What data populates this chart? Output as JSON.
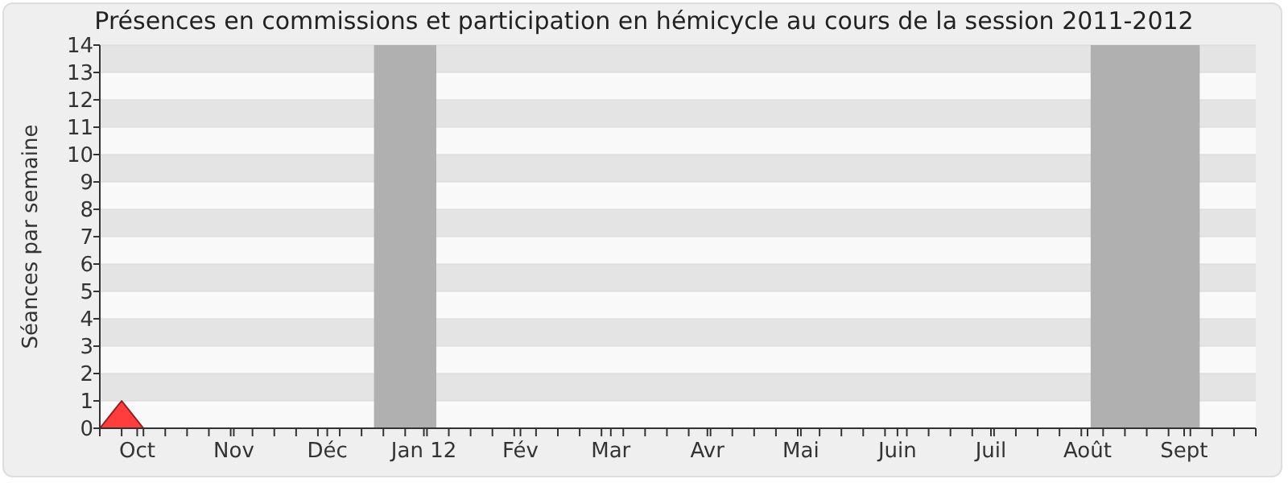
{
  "chart_data": {
    "type": "area",
    "title": "Présences en commissions et participation en hémicycle au cours de la session 2011-2012",
    "ylabel": "Séances par semaine",
    "x": [
      "2011-09-19",
      "2011-09-26",
      "2011-10-03",
      "2011-10-10",
      "2011-10-17",
      "2011-10-24",
      "2011-10-31",
      "2011-11-07",
      "2011-11-14",
      "2011-11-21",
      "2011-11-28",
      "2011-12-05",
      "2011-12-12",
      "2011-12-19",
      "2011-12-26",
      "2012-01-02",
      "2012-01-09",
      "2012-01-16",
      "2012-01-23",
      "2012-01-30",
      "2012-02-06",
      "2012-02-13",
      "2012-02-20",
      "2012-02-27",
      "2012-03-05",
      "2012-03-12",
      "2012-03-19",
      "2012-03-26",
      "2012-04-02",
      "2012-04-09",
      "2012-04-16",
      "2012-04-23",
      "2012-04-30",
      "2012-05-07",
      "2012-05-14",
      "2012-05-21",
      "2012-05-28",
      "2012-06-04",
      "2012-06-11",
      "2012-06-18",
      "2012-06-25",
      "2012-07-02",
      "2012-07-09",
      "2012-07-16",
      "2012-07-23",
      "2012-07-30",
      "2012-08-06",
      "2012-08-13",
      "2012-08-20",
      "2012-08-27",
      "2012-09-03",
      "2012-09-10",
      "2012-09-17",
      "2012-09-24"
    ],
    "series": [
      {
        "color": "#ff3333",
        "values": [
          0,
          1,
          0,
          0,
          0,
          0,
          0,
          0,
          0,
          0,
          0,
          0,
          0,
          0,
          0,
          0,
          0,
          0,
          0,
          0,
          0,
          0,
          0,
          0,
          0,
          0,
          0,
          0,
          0,
          0,
          0,
          0,
          0,
          0,
          0,
          0,
          0,
          0,
          0,
          0,
          0,
          0,
          0,
          0,
          0,
          0,
          0,
          0,
          0,
          0,
          0,
          0,
          0,
          0
        ]
      }
    ],
    "xlim": [
      "2011-09-19",
      "2012-09-24"
    ],
    "xticks": [
      {
        "value": "2011-10-01",
        "label": "Oct"
      },
      {
        "value": "2011-11-01",
        "label": "Nov"
      },
      {
        "value": "2011-12-01",
        "label": "Déc"
      },
      {
        "value": "2012-01-01",
        "label": "Jan 12"
      },
      {
        "value": "2012-02-01",
        "label": "Fév"
      },
      {
        "value": "2012-03-01",
        "label": "Mar"
      },
      {
        "value": "2012-04-01",
        "label": "Avr"
      },
      {
        "value": "2012-05-01",
        "label": "Mai"
      },
      {
        "value": "2012-06-01",
        "label": "Juin"
      },
      {
        "value": "2012-07-01",
        "label": "Juil"
      },
      {
        "value": "2012-08-01",
        "label": "Août"
      },
      {
        "value": "2012-09-01",
        "label": "Sept"
      },
      {
        "value": "2011-09-19",
        "label": null
      },
      {
        "value": "2011-09-26",
        "label": null
      },
      {
        "value": "2011-10-03",
        "label": null
      },
      {
        "value": "2011-10-10",
        "label": null
      },
      {
        "value": "2011-10-17",
        "label": null
      },
      {
        "value": "2011-10-24",
        "label": null
      },
      {
        "value": "2011-10-31",
        "label": null
      },
      {
        "value": "2011-11-07",
        "label": null
      },
      {
        "value": "2011-11-14",
        "label": null
      },
      {
        "value": "2011-11-21",
        "label": null
      },
      {
        "value": "2011-11-28",
        "label": null
      },
      {
        "value": "2011-12-05",
        "label": null
      },
      {
        "value": "2011-12-12",
        "label": null
      },
      {
        "value": "2011-12-19",
        "label": null
      },
      {
        "value": "2011-12-26",
        "label": null
      },
      {
        "value": "2012-01-02",
        "label": null
      },
      {
        "value": "2012-01-09",
        "label": null
      },
      {
        "value": "2012-01-16",
        "label": null
      },
      {
        "value": "2012-01-23",
        "label": null
      },
      {
        "value": "2012-01-30",
        "label": null
      },
      {
        "value": "2012-02-06",
        "label": null
      },
      {
        "value": "2012-02-13",
        "label": null
      },
      {
        "value": "2012-02-20",
        "label": null
      },
      {
        "value": "2012-02-27",
        "label": null
      },
      {
        "value": "2012-03-05",
        "label": null
      },
      {
        "value": "2012-03-12",
        "label": null
      },
      {
        "value": "2012-03-19",
        "label": null
      },
      {
        "value": "2012-03-26",
        "label": null
      },
      {
        "value": "2012-04-02",
        "label": null
      },
      {
        "value": "2012-04-09",
        "label": null
      },
      {
        "value": "2012-04-16",
        "label": null
      },
      {
        "value": "2012-04-23",
        "label": null
      },
      {
        "value": "2012-04-30",
        "label": null
      },
      {
        "value": "2012-05-07",
        "label": null
      },
      {
        "value": "2012-05-14",
        "label": null
      },
      {
        "value": "2012-05-21",
        "label": null
      },
      {
        "value": "2012-05-28",
        "label": null
      },
      {
        "value": "2012-06-04",
        "label": null
      },
      {
        "value": "2012-06-11",
        "label": null
      },
      {
        "value": "2012-06-18",
        "label": null
      },
      {
        "value": "2012-06-25",
        "label": null
      },
      {
        "value": "2012-07-02",
        "label": null
      },
      {
        "value": "2012-07-09",
        "label": null
      },
      {
        "value": "2012-07-16",
        "label": null
      },
      {
        "value": "2012-07-23",
        "label": null
      },
      {
        "value": "2012-07-30",
        "label": null
      },
      {
        "value": "2012-08-06",
        "label": null
      },
      {
        "value": "2012-08-13",
        "label": null
      },
      {
        "value": "2012-08-20",
        "label": null
      },
      {
        "value": "2012-08-27",
        "label": null
      },
      {
        "value": "2012-09-03",
        "label": null
      },
      {
        "value": "2012-09-10",
        "label": null
      },
      {
        "value": "2012-09-17",
        "label": null
      },
      {
        "value": "2012-09-24",
        "label": null
      }
    ],
    "ylim": [
      0,
      14
    ],
    "yticks": [
      0,
      1,
      2,
      3,
      4,
      5,
      6,
      7,
      8,
      9,
      10,
      11,
      12,
      13,
      14
    ],
    "grid": "y",
    "bands": [
      {
        "axis": "x",
        "from": "2011-12-16",
        "to": "2012-01-05",
        "color": "#b0b0b0"
      },
      {
        "axis": "x",
        "from": "2012-08-02",
        "to": "2012-09-06",
        "color": "#b0b0b0"
      }
    ]
  }
}
